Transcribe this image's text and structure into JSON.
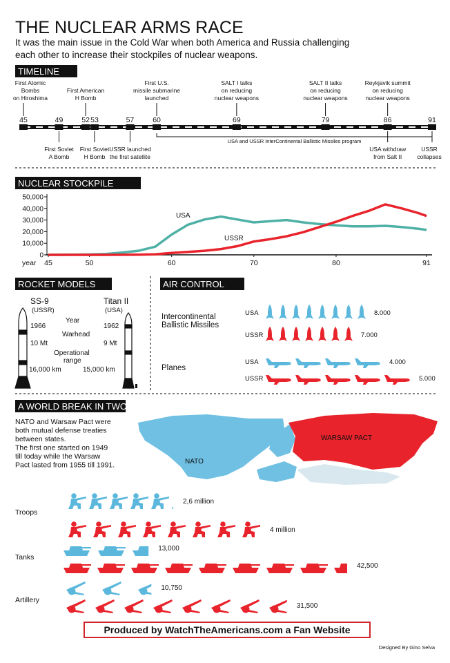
{
  "header": {
    "title": "THE NUCLEAR ARMS RACE",
    "subtitle": [
      "It was the main issue in the Cold War when both America and Russia challenging",
      "each other to increase their stockpiles of nuclear weapons."
    ]
  },
  "timeline": {
    "heading": "TIMELINE",
    "range": [
      45,
      91
    ],
    "ticks": [
      45,
      49,
      52,
      53,
      57,
      60,
      69,
      79,
      86,
      91
    ],
    "events_above": [
      {
        "year": 45,
        "lines": [
          "First Atomic",
          "Bombs",
          "on Hiroshima"
        ]
      },
      {
        "year": 52,
        "lines": [
          "First American",
          "H Bomb"
        ]
      },
      {
        "year": 60,
        "lines": [
          "First U.S.",
          "missile submarine",
          "launched"
        ]
      },
      {
        "year": 69,
        "lines": [
          "SALT I talks",
          "on reducing",
          "nuclear weapons"
        ]
      },
      {
        "year": 79,
        "lines": [
          "SALT II talks",
          "on reducing",
          "nuclear weapons"
        ]
      },
      {
        "year": 86,
        "lines": [
          "Reykjavik summit",
          "on reducing",
          "nuclear weapons"
        ]
      }
    ],
    "events_below": [
      {
        "year": 49,
        "lines": [
          "First Soviet",
          "A Bomb"
        ]
      },
      {
        "year": 53,
        "lines": [
          "First Soviet",
          "H Bomb"
        ]
      },
      {
        "year": 57,
        "lines": [
          "USSR launched",
          "the first satellite"
        ]
      },
      {
        "year": 86,
        "lines": [
          "USA withdraw",
          "from Salt II"
        ]
      },
      {
        "year": 91,
        "lines": [
          "USSR",
          "collapses"
        ]
      }
    ],
    "program": {
      "span": [
        60,
        91
      ],
      "label": "USA and USSR InterContinental Ballistic Missiles program"
    }
  },
  "stockpile": {
    "heading": "NUCLEAR STOCKPILE",
    "type": "line",
    "x_label": "year",
    "x": [
      45,
      48,
      50,
      52,
      54,
      56,
      58,
      60,
      62,
      64,
      66,
      68,
      70,
      72,
      74,
      76,
      78,
      80,
      82,
      84,
      86,
      88,
      90,
      91
    ],
    "series": [
      {
        "name": "USA",
        "color": "#4fb1a6",
        "values": [
          0,
          100,
          300,
          800,
          2000,
          3500,
          7000,
          17500,
          26000,
          30500,
          33000,
          30500,
          28000,
          29000,
          30000,
          28000,
          26500,
          25500,
          24500,
          24500,
          25000,
          24000,
          22500,
          21500
        ]
      },
      {
        "name": "USSR",
        "color": "#e8232b",
        "values": [
          0,
          0,
          0,
          0,
          50,
          200,
          500,
          1600,
          2500,
          3500,
          5000,
          7500,
          11500,
          13500,
          16000,
          19500,
          24000,
          28500,
          33500,
          38000,
          43500,
          40000,
          36000,
          33500
        ]
      }
    ],
    "xlim": [
      45,
      91
    ],
    "xticks": [
      45,
      50,
      60,
      70,
      80,
      91
    ],
    "ylim": [
      0,
      50000
    ],
    "yticks": [
      0,
      {
        "value": 10000,
        "label": "10,000"
      },
      {
        "value": 20000,
        "label": "20,000"
      },
      {
        "value": 30000,
        "label": "30,000"
      },
      {
        "value": 40000,
        "label": "40,000"
      },
      {
        "value": 50000,
        "label": "50,000"
      }
    ]
  },
  "rockets": {
    "heading": "ROCKET MODELS",
    "labels": {
      "year": "Year",
      "warhead": "Warhead",
      "range": [
        "Operational",
        "range"
      ]
    },
    "models": [
      {
        "name": "SS-9",
        "country": "(USSR)",
        "year": "1966",
        "warhead": "10 Mt",
        "range": "16,000 km"
      },
      {
        "name": "Titan II",
        "country": "(USA)",
        "year": "1962",
        "warhead": "9 Mt",
        "range": "15,000 km"
      }
    ]
  },
  "air_control": {
    "heading": "AIR CONTROL",
    "groups": [
      {
        "label": [
          "Intercontinental",
          "Ballistic Missiles"
        ],
        "rows": [
          {
            "country": "USA",
            "color": "#5bb8dc",
            "value": 8000,
            "value_label": "8.000"
          },
          {
            "country": "USSR",
            "color": "#e8232b",
            "value": 7000,
            "value_label": "7.000"
          }
        ]
      },
      {
        "label": [
          "Planes"
        ],
        "rows": [
          {
            "country": "USA",
            "color": "#5bb8dc",
            "value": 4000,
            "value_label": "4.000"
          },
          {
            "country": "USSR",
            "color": "#e8232b",
            "value": 5000,
            "value_label": "5.000"
          }
        ]
      }
    ]
  },
  "world": {
    "heading": "A WORLD BREAK IN TWO",
    "text": [
      "NATO and Warsaw Pact were",
      "both mutual defense treaties",
      "between states.",
      "The first one started on 1949",
      "till today while the Warsaw",
      "Pact lasted from 1955 till 1991."
    ],
    "map_labels": {
      "nato": "NATO",
      "warsaw": "WARSAW PACT"
    },
    "forces": [
      {
        "label": "Troops",
        "rows": [
          {
            "color": "#5bb8dc",
            "value": 2600000,
            "value_label": "2,6 million"
          },
          {
            "color": "#e8232b",
            "value": 4000000,
            "value_label": "4 million"
          }
        ]
      },
      {
        "label": "Tanks",
        "rows": [
          {
            "color": "#5bb8dc",
            "value": 13000,
            "value_label": "13,000"
          },
          {
            "color": "#e8232b",
            "value": 42500,
            "value_label": "42,500"
          }
        ]
      },
      {
        "label": "Artillery",
        "rows": [
          {
            "color": "#5bb8dc",
            "value": 10750,
            "value_label": "10,750"
          },
          {
            "color": "#e8232b",
            "value": 31500,
            "value_label": "31,500"
          }
        ]
      }
    ]
  },
  "footer": {
    "produced": "Produced by WatchTheAmericans.com a Fan Website",
    "designer": "Designed By Gino Selva"
  }
}
